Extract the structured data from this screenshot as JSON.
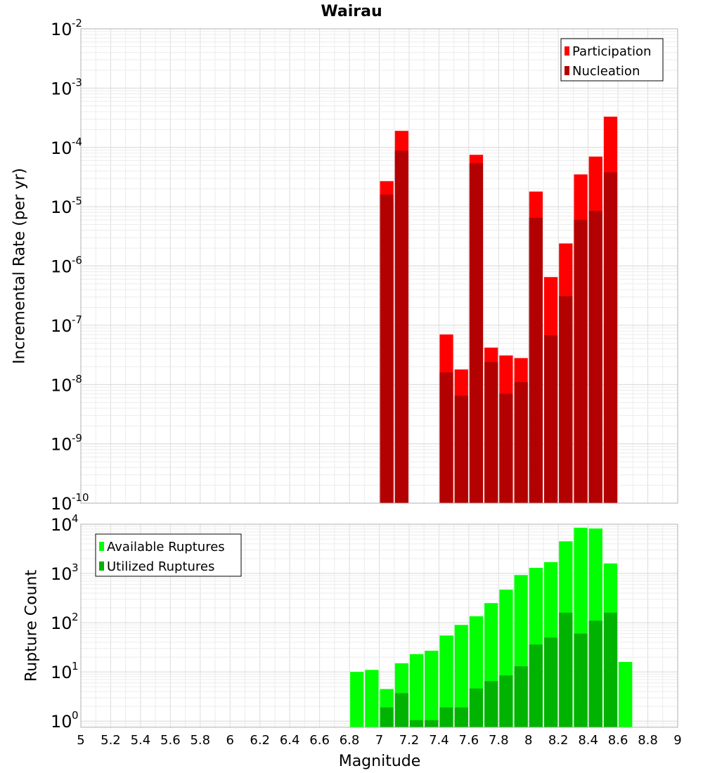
{
  "chart_data": [
    {
      "type": "bar",
      "title": "Wairau",
      "xlabel": "",
      "ylabel": "Incremental Rate (per yr)",
      "y_scale": "log",
      "ylim": [
        1e-10,
        0.01
      ],
      "xlim": [
        5,
        9
      ],
      "bar_width": 0.1,
      "grid": true,
      "legend_position": "top-right",
      "y_ticks": [
        {
          "base": "10",
          "exp": "-10",
          "value": 1e-10
        },
        {
          "base": "10",
          "exp": "-9",
          "value": 1e-09
        },
        {
          "base": "10",
          "exp": "-8",
          "value": 1e-08
        },
        {
          "base": "10",
          "exp": "-7",
          "value": 1e-07
        },
        {
          "base": "10",
          "exp": "-6",
          "value": 1e-06
        },
        {
          "base": "10",
          "exp": "-5",
          "value": 1e-05
        },
        {
          "base": "10",
          "exp": "-4",
          "value": 0.0001
        },
        {
          "base": "10",
          "exp": "-3",
          "value": 0.001
        },
        {
          "base": "10",
          "exp": "-2",
          "value": 0.01
        }
      ],
      "series": [
        {
          "name": "Participation",
          "color": "#ff0000",
          "x": [
            7.05,
            7.15,
            7.45,
            7.55,
            7.65,
            7.75,
            7.85,
            7.95,
            8.05,
            8.15,
            8.25,
            8.35,
            8.45,
            8.55
          ],
          "values": [
            2.7e-05,
            0.00019,
            7e-08,
            1.8e-08,
            7.5e-05,
            4.2e-08,
            3.1e-08,
            2.8e-08,
            1.8e-05,
            6.5e-07,
            2.4e-06,
            3.5e-05,
            7e-05,
            0.00033
          ]
        },
        {
          "name": "Nucleation",
          "color": "#b30000",
          "x": [
            7.05,
            7.15,
            7.45,
            7.55,
            7.65,
            7.75,
            7.85,
            7.95,
            8.05,
            8.15,
            8.25,
            8.35,
            8.45,
            8.55
          ],
          "values": [
            1.6e-05,
            8.8e-05,
            1.6e-08,
            6.5e-09,
            5.4e-05,
            2.4e-08,
            7e-09,
            1.1e-08,
            6.5e-06,
            6.8e-08,
            3.1e-07,
            6e-06,
            8.5e-06,
            3.8e-05
          ]
        }
      ]
    },
    {
      "type": "bar",
      "title": "",
      "xlabel": "Magnitude",
      "ylabel": "Rupture Count",
      "y_scale": "log",
      "ylim": [
        0.75,
        10000
      ],
      "xlim": [
        5,
        9
      ],
      "bar_width": 0.1,
      "grid": true,
      "legend_position": "top-left",
      "x_ticks": [
        "5",
        "5.2",
        "5.4",
        "5.6",
        "5.8",
        "6",
        "6.2",
        "6.4",
        "6.6",
        "6.8",
        "7",
        "7.2",
        "7.4",
        "7.6",
        "7.8",
        "8",
        "8.2",
        "8.4",
        "8.6",
        "8.8",
        "9"
      ],
      "y_ticks": [
        {
          "base": "10",
          "exp": "0",
          "value": 1
        },
        {
          "base": "10",
          "exp": "1",
          "value": 10
        },
        {
          "base": "10",
          "exp": "2",
          "value": 100
        },
        {
          "base": "10",
          "exp": "3",
          "value": 1000
        },
        {
          "base": "10",
          "exp": "4",
          "value": 10000
        }
      ],
      "series": [
        {
          "name": "Available Ruptures",
          "color": "#00ff00",
          "x": [
            6.85,
            6.95,
            7.05,
            7.15,
            7.25,
            7.35,
            7.45,
            7.55,
            7.65,
            7.75,
            7.85,
            7.95,
            8.05,
            8.15,
            8.25,
            8.35,
            8.45,
            8.55,
            8.65
          ],
          "values": [
            10,
            11,
            4.5,
            15,
            23,
            27,
            55,
            90,
            135,
            250,
            470,
            930,
            1300,
            1700,
            4500,
            8500,
            8200,
            1600,
            16
          ]
        },
        {
          "name": "Utilized Ruptures",
          "color": "#00b300",
          "x": [
            7.05,
            7.15,
            7.25,
            7.35,
            7.45,
            7.55,
            7.65,
            7.75,
            7.85,
            7.95,
            8.05,
            8.15,
            8.25,
            8.35,
            8.45,
            8.55
          ],
          "values": [
            1.9,
            3.7,
            1.05,
            1.05,
            1.9,
            1.9,
            4.6,
            6.5,
            8.5,
            13,
            36,
            50,
            160,
            60,
            110,
            160
          ]
        }
      ]
    }
  ]
}
